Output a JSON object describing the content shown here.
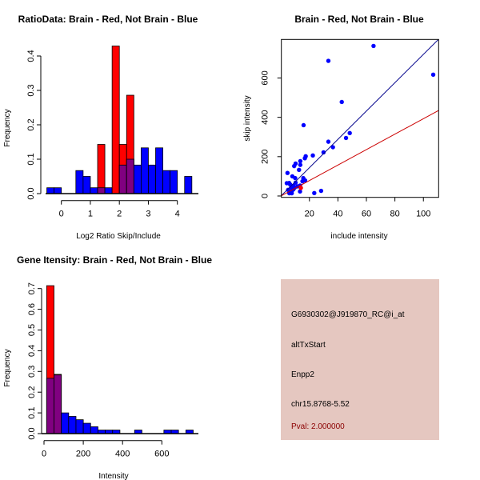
{
  "chart_data": [
    {
      "type": "bar",
      "title": "RatioData: Brain - Red, Not Brain - Blue",
      "xlabel": "Log2 Ratio Skip/Include",
      "ylabel": "Frequency",
      "xticks": [
        "0",
        "1",
        "2",
        "3",
        "4"
      ],
      "yticks": [
        "0.0",
        "0.1",
        "0.2",
        "0.3",
        "0.4"
      ],
      "xlim": [
        -0.6,
        4.75
      ],
      "ylim": [
        0,
        0.4
      ],
      "bin_start": -0.5,
      "bin_width": 0.25,
      "series": [
        {
          "name": "Not Brain",
          "color": "#0000ff",
          "values": [
            0.017,
            0.017,
            0,
            0,
            0.067,
            0.05,
            0.017,
            0.017,
            0.017,
            0,
            0.083,
            0.1,
            0.083,
            0.133,
            0.083,
            0.133,
            0.067,
            0.067,
            0,
            0.05
          ]
        },
        {
          "name": "Brain",
          "color": "#ff0000",
          "values": [
            0,
            0,
            0,
            0,
            0,
            0,
            0,
            0.143,
            0,
            0.429,
            0.143,
            0.286,
            0,
            0,
            0,
            0,
            0,
            0,
            0,
            0
          ]
        }
      ],
      "overlap_color": "#800080"
    },
    {
      "type": "scatter",
      "title": "Brain - Red, Not Brain - Blue",
      "xlabel": "include intensity",
      "ylabel": "skip intensity",
      "xticks": [
        "20",
        "40",
        "60",
        "80",
        "100"
      ],
      "yticks": [
        "0",
        "200",
        "400",
        "600"
      ],
      "xlim": [
        0.3,
        110.7
      ],
      "ylim": [
        -7,
        796
      ],
      "series": [
        {
          "name": "Not Brain",
          "color": "#0000ff",
          "points": [
            [
              65,
              763
            ],
            [
              33.3,
              687
            ],
            [
              106.9,
              617
            ],
            [
              42.7,
              478
            ],
            [
              15.9,
              360
            ],
            [
              48.3,
              320
            ],
            [
              45.7,
              295
            ],
            [
              33.3,
              276
            ],
            [
              36.5,
              248
            ],
            [
              29.9,
              222
            ],
            [
              22.4,
              206
            ],
            [
              17.4,
              202
            ],
            [
              16.8,
              192
            ],
            [
              13.6,
              177
            ],
            [
              13.6,
              158
            ],
            [
              10.3,
              165
            ],
            [
              9.3,
              152
            ],
            [
              12.7,
              133
            ],
            [
              4.6,
              117
            ],
            [
              8,
              100
            ],
            [
              10,
              91
            ],
            [
              15.7,
              91
            ],
            [
              17,
              79
            ],
            [
              15.1,
              75
            ],
            [
              5.8,
              66
            ],
            [
              4.1,
              65
            ],
            [
              6.5,
              58
            ],
            [
              8.8,
              51
            ],
            [
              11.6,
              49
            ],
            [
              13.4,
              53
            ],
            [
              9.7,
              43
            ],
            [
              5,
              31
            ],
            [
              7.8,
              27
            ],
            [
              7.6,
              14
            ],
            [
              5.9,
              14
            ],
            [
              13.4,
              23
            ],
            [
              23.4,
              15
            ],
            [
              28.2,
              26
            ],
            [
              10.3,
              68
            ],
            [
              7.3,
              43
            ],
            [
              8.8,
              34
            ]
          ]
        },
        {
          "name": "Brain",
          "color": "#ff0000",
          "points": [
            [
              14,
              41
            ]
          ]
        }
      ],
      "lines": [
        {
          "name": "Not Brain fit",
          "color": "#00008b",
          "slope": 7.2
        },
        {
          "name": "Brain fit",
          "color": "#cc0000",
          "slope": 3.93
        }
      ]
    },
    {
      "type": "bar",
      "title": "Gene Itensity: Brain - Red, Not Brain - Blue",
      "xlabel": "Intensity",
      "ylabel": "Frequency",
      "xticks": [
        "0",
        "200",
        "400",
        "600"
      ],
      "yticks": [
        "0.0",
        "0.1",
        "0.2",
        "0.3",
        "0.4",
        "0.5",
        "0.6",
        "0.7"
      ],
      "xlim": [
        -12,
        780
      ],
      "ylim": [
        0,
        0.7
      ],
      "bin_start": 13.6,
      "bin_width": 37.3,
      "series": [
        {
          "name": "Not Brain",
          "color": "#0000ff",
          "values": [
            0.267,
            0.283,
            0.1,
            0.083,
            0.067,
            0.05,
            0.033,
            0.017,
            0.017,
            0.017,
            0,
            0,
            0.017,
            0,
            0,
            0,
            0.017,
            0.017,
            0,
            0.017
          ]
        },
        {
          "name": "Brain",
          "color": "#ff0000",
          "values": [
            0.714,
            0.286,
            0,
            0,
            0,
            0,
            0,
            0,
            0,
            0,
            0,
            0,
            0,
            0,
            0,
            0,
            0,
            0,
            0,
            0
          ]
        }
      ],
      "overlap_color": "#800080"
    }
  ],
  "info_panel": {
    "background": "#e5c7c0",
    "probe": "G6930302@J919870_RC@i_at",
    "event_type": "altTxStart",
    "gene": "Enpp2",
    "location": "chr15.8768-5.52",
    "pval": "Pval: 2.000000",
    "pval_color": "#8b0000"
  }
}
